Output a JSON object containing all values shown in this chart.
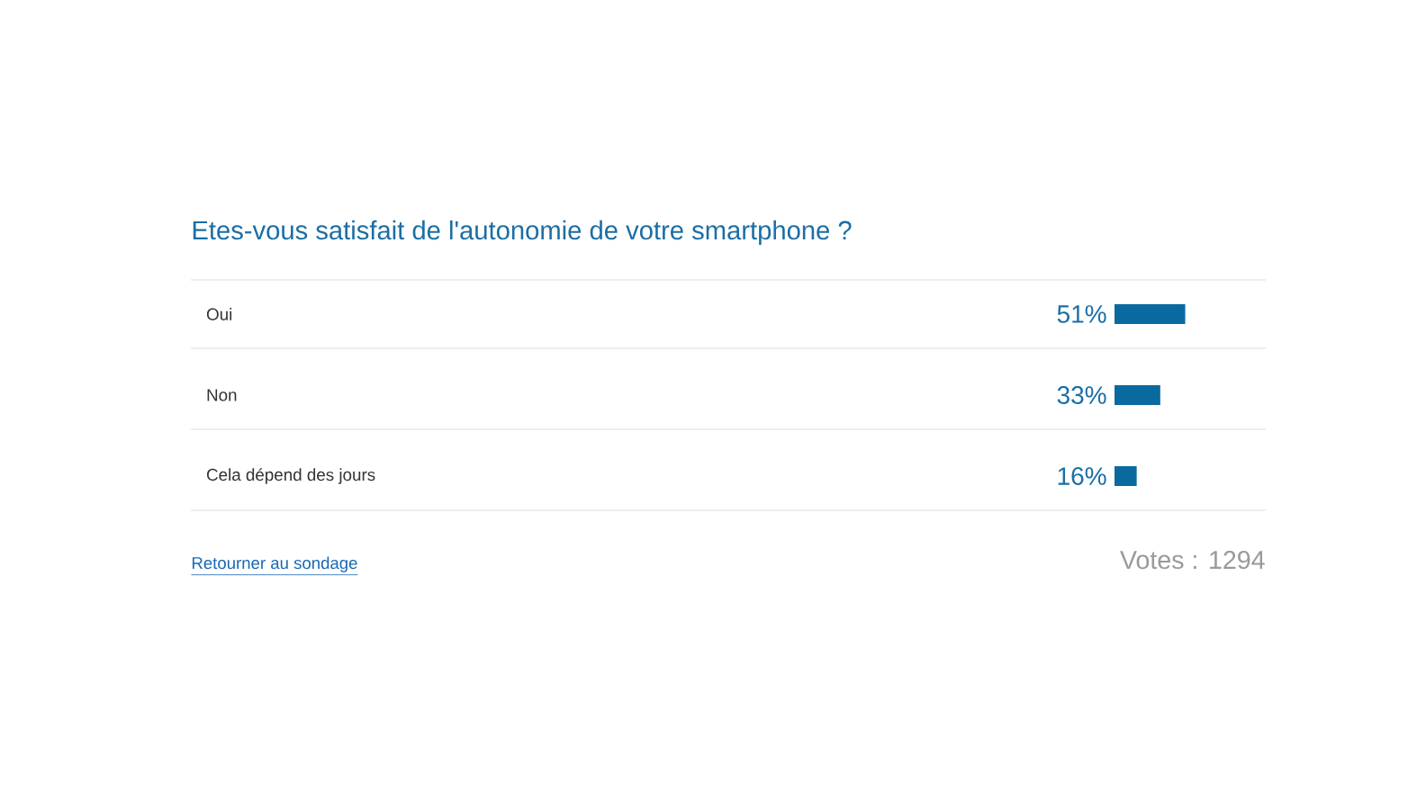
{
  "chart_data": {
    "type": "bar",
    "orientation": "horizontal",
    "title": "Etes-vous satisfait de l'autonomie de votre smartphone ?",
    "categories": [
      "Oui",
      "Non",
      "Cela dépend des jours"
    ],
    "values": [
      51,
      33,
      16
    ],
    "color": "#0a6aa0",
    "value_labels": [
      "51%",
      "33%",
      "16%"
    ],
    "annotations": [
      "Retourner au sondage",
      "Votes : 1294"
    ]
  }
}
